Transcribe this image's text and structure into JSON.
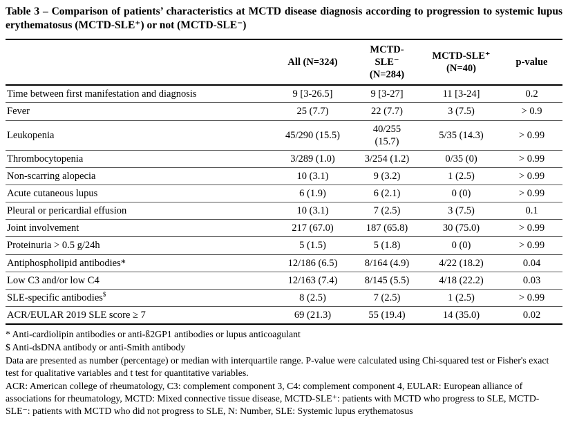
{
  "title": {
    "text": "Table 3 – Comparison of patients’ characteristics at MCTD disease diagnosis according to progression to systemic lupus erythematosus (MCTD-SLE⁺) or not (MCTD-SLE⁻)"
  },
  "table": {
    "columns": [
      {
        "label": ""
      },
      {
        "label": "All (N=324)"
      },
      {
        "label": "MCTD-\nSLE⁻\n(N=284)"
      },
      {
        "label": "MCTD-SLE⁺\n(N=40)"
      },
      {
        "label": "p-value"
      }
    ],
    "rows": [
      {
        "label": "Time between first manifestation and diagnosis",
        "values": [
          "9 [3-26.5]",
          "9 [3-27]",
          "11 [3-24]",
          "0.2"
        ]
      },
      {
        "label": "Fever",
        "values": [
          "25 (7.7)",
          "22 (7.7)",
          "3 (7.5)",
          "> 0.9"
        ]
      },
      {
        "label": "Leukopenia",
        "values": [
          "45/290 (15.5)",
          "40/255\n(15.7)",
          "5/35 (14.3)",
          "> 0.99"
        ]
      },
      {
        "label": "Thrombocytopenia",
        "values": [
          "3/289 (1.0)",
          "3/254 (1.2)",
          "0/35 (0)",
          "> 0.99"
        ]
      },
      {
        "label": "Non-scarring alopecia",
        "values": [
          "10 (3.1)",
          "9 (3.2)",
          "1 (2.5)",
          "> 0.99"
        ]
      },
      {
        "label": "Acute cutaneous lupus",
        "values": [
          "6 (1.9)",
          "6 (2.1)",
          "0 (0)",
          "> 0.99"
        ]
      },
      {
        "label": "Pleural or pericardial effusion",
        "values": [
          "10 (3.1)",
          "7 (2.5)",
          "3 (7.5)",
          "0.1"
        ]
      },
      {
        "label": "Joint involvement",
        "values": [
          "217 (67.0)",
          "187 (65.8)",
          "30 (75.0)",
          "> 0.99"
        ]
      },
      {
        "label": "Proteinuria > 0.5 g/24h",
        "values": [
          "5 (1.5)",
          "5 (1.8)",
          "0 (0)",
          "> 0.99"
        ]
      },
      {
        "label": "Antiphospholipid antibodies*",
        "values": [
          "12/186 (6.5)",
          "8/164 (4.9)",
          "4/22 (18.2)",
          "0.04"
        ]
      },
      {
        "label": "Low C3 and/or low C4",
        "values": [
          "12/163 (7.4)",
          "8/145 (5.5)",
          "4/18 (22.2)",
          "0.03"
        ]
      },
      {
        "label": "SLE-specific antibodies",
        "sup": "$",
        "values": [
          "8 (2.5)",
          "7 (2.5)",
          "1 (2.5)",
          "> 0.99"
        ]
      },
      {
        "label": "ACR/EULAR 2019 SLE score ≥ 7",
        "values": [
          "69 (21.3)",
          "55 (19.4)",
          "14 (35.0)",
          "0.02"
        ]
      }
    ]
  },
  "footnotes": [
    "* Anti-cardiolipin antibodies or anti-ß2GP1 antibodies or lupus anticoagulant",
    "$ Anti-dsDNA antibody or anti-Smith antibody",
    "Data are presented as number (percentage) or median with interquartile range. P-value were calculated using Chi-squared test or Fisher's exact test for qualitative variables and t test for quantitative variables.",
    "ACR: American college of rheumatology, C3: complement component 3, C4: complement component 4, EULAR: European alliance of associations for rheumatology, MCTD: Mixed connective tissue disease, MCTD-SLE⁺: patients with MCTD who progress to SLE, MCTD-SLE⁻: patients with MCTD who did not progress to SLE, N: Number, SLE: Systemic lupus erythematosus"
  ]
}
